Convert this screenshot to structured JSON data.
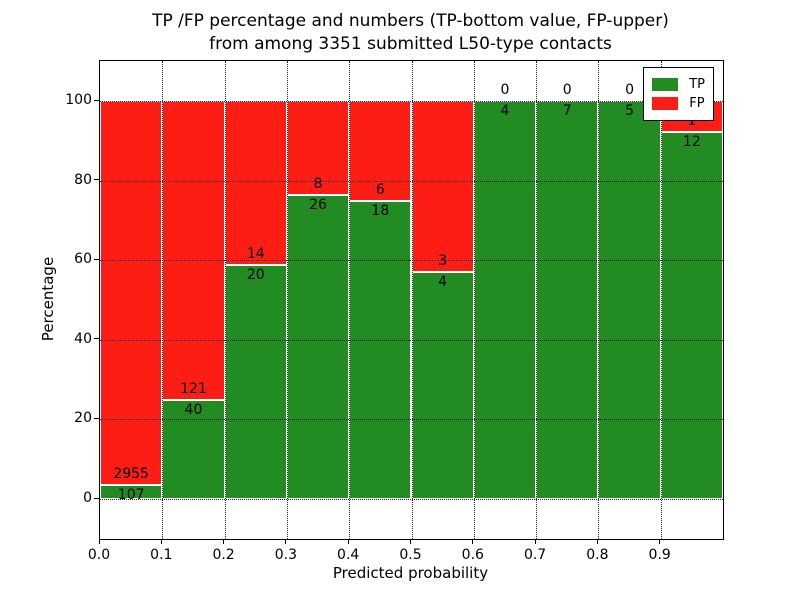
{
  "title": {
    "line1": "TP /FP percentage and numbers (TP-bottom value, FP-upper)",
    "line2": "from among 3351 submitted L50-type contacts"
  },
  "chart_data": {
    "type": "bar",
    "stacked": true,
    "normalized_to_percent": true,
    "title": "TP /FP percentage and numbers (TP-bottom value, FP-upper) from among 3351 submitted L50-type contacts",
    "xlabel": "Predicted probability",
    "ylabel": "Percentage",
    "submitted_total": 3351,
    "bin_width": 0.1,
    "bin_starts": [
      0.0,
      0.1,
      0.2,
      0.3,
      0.4,
      0.5,
      0.6,
      0.7,
      0.8,
      0.9
    ],
    "x_tick_labels": [
      "0.0",
      "0.1",
      "0.2",
      "0.3",
      "0.4",
      "0.5",
      "0.6",
      "0.7",
      "0.8",
      "0.9"
    ],
    "y_ticks": [
      0,
      20,
      40,
      60,
      80,
      100
    ],
    "xlim": [
      0.0,
      1.0
    ],
    "ylim": [
      -10,
      110
    ],
    "grid": {
      "style": "dotted",
      "color": "#000000"
    },
    "series": [
      {
        "name": "TP",
        "color": "#228b22",
        "values": [
          107,
          40,
          20,
          26,
          18,
          4,
          4,
          7,
          5,
          12
        ]
      },
      {
        "name": "FP",
        "color": "#fc1e14",
        "values": [
          2955,
          121,
          14,
          8,
          6,
          3,
          0,
          0,
          0,
          1
        ]
      }
    ],
    "legend": {
      "position": "upper right",
      "entries": [
        "TP",
        "FP"
      ]
    }
  }
}
